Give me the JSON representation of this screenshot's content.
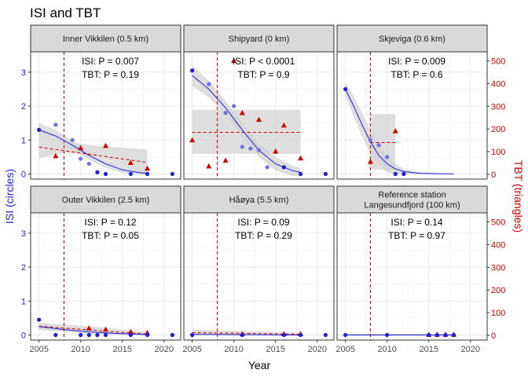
{
  "chart_data": {
    "type": "scatter",
    "title": "ISI and TBT",
    "xlabel": "Year",
    "ylabel_left": "ISI (circles)",
    "ylabel_right": "TBT (triangles)",
    "xlim": [
      2004,
      2022
    ],
    "x_ticks": [
      2005,
      2010,
      2015,
      2020
    ],
    "ylim_isi": [
      -0.15,
      3.6
    ],
    "y_ticks_isi": [
      0,
      1,
      2,
      3
    ],
    "ylim_tbt": [
      -21,
      540
    ],
    "y_ticks_tbt": [
      0,
      100,
      200,
      300,
      400,
      500
    ],
    "reference_line_year": 2008,
    "colors": {
      "isi": "#1f1fd6",
      "isi_faded": "#7070e0",
      "tbt": "#cc0000",
      "ribbon": "#d3d3d3",
      "strip": "#d9d9d9",
      "grid": "#ebebeb",
      "left_axis_text": "#1f1fd6",
      "right_axis_text": "#cc0000"
    },
    "panels": [
      {
        "title": "Inner Vikkilen (0.5 km)",
        "isi_p": "ISI: P =  0.007",
        "tbt_p": "TBT: P =  0.19",
        "isi": [
          [
            2005,
            1.3
          ],
          [
            2007,
            1.45
          ],
          [
            2009,
            1.0
          ],
          [
            2010,
            0.45
          ],
          [
            2011,
            0.3
          ],
          [
            2012,
            0.05
          ],
          [
            2013,
            0.0
          ],
          [
            2016,
            0.0
          ],
          [
            2018,
            0.0
          ],
          [
            2021,
            0.0
          ]
        ],
        "tbt": [
          [
            2007,
            80
          ],
          [
            2010,
            115
          ],
          [
            2013,
            125
          ],
          [
            2016,
            50
          ],
          [
            2018,
            25
          ]
        ],
        "isi_fit": [
          [
            2005,
            1.3
          ],
          [
            2007,
            1.12
          ],
          [
            2009,
            0.85
          ],
          [
            2011,
            0.55
          ],
          [
            2013,
            0.3
          ],
          [
            2015,
            0.12
          ],
          [
            2017,
            0.04
          ],
          [
            2018,
            0.02
          ]
        ],
        "isi_band": [
          [
            2005,
            1.1,
            1.5
          ],
          [
            2007,
            0.95,
            1.3
          ],
          [
            2009,
            0.72,
            0.98
          ],
          [
            2011,
            0.42,
            0.68
          ],
          [
            2013,
            0.18,
            0.42
          ],
          [
            2015,
            0.03,
            0.25
          ],
          [
            2017,
            -0.02,
            0.12
          ],
          [
            2018,
            -0.03,
            0.08
          ]
        ],
        "tbt_fit": [
          [
            2005,
            120
          ],
          [
            2018,
            52
          ]
        ],
        "tbt_band": [
          [
            2005,
            70,
            165
          ],
          [
            2008,
            95,
            145
          ],
          [
            2012,
            80,
            125
          ],
          [
            2018,
            0,
            110
          ]
        ]
      },
      {
        "title": "Shipyard (0 km)",
        "isi_p": "ISI: P < 0.0001",
        "tbt_p": "TBT: P =  0.9",
        "isi": [
          [
            2005,
            3.05
          ],
          [
            2007,
            2.65
          ],
          [
            2009,
            1.8
          ],
          [
            2010,
            2.0
          ],
          [
            2011,
            0.8
          ],
          [
            2012,
            0.75
          ],
          [
            2013,
            0.7
          ],
          [
            2014,
            0.2
          ],
          [
            2016,
            0.2
          ],
          [
            2018,
            0.0
          ],
          [
            2021,
            0.0
          ]
        ],
        "tbt": [
          [
            2005,
            150
          ],
          [
            2007,
            35
          ],
          [
            2009,
            60
          ],
          [
            2010,
            500
          ],
          [
            2011,
            270
          ],
          [
            2013,
            240
          ],
          [
            2015,
            100
          ],
          [
            2016,
            215
          ],
          [
            2018,
            70
          ]
        ],
        "isi_fit": [
          [
            2005,
            2.9
          ],
          [
            2007,
            2.5
          ],
          [
            2009,
            1.95
          ],
          [
            2011,
            1.3
          ],
          [
            2013,
            0.7
          ],
          [
            2015,
            0.3
          ],
          [
            2017,
            0.1
          ],
          [
            2018,
            0.05
          ]
        ],
        "isi_band": [
          [
            2005,
            2.6,
            3.2
          ],
          [
            2007,
            2.25,
            2.75
          ],
          [
            2009,
            1.75,
            2.15
          ],
          [
            2011,
            1.1,
            1.5
          ],
          [
            2013,
            0.5,
            0.9
          ],
          [
            2015,
            0.1,
            0.5
          ],
          [
            2017,
            -0.05,
            0.25
          ],
          [
            2018,
            -0.08,
            0.18
          ]
        ],
        "tbt_fit": [
          [
            2005,
            185
          ],
          [
            2018,
            185
          ]
        ],
        "tbt_band": [
          [
            2005,
            90,
            285
          ],
          [
            2018,
            90,
            285
          ]
        ]
      },
      {
        "title": "Skjeviga (0.6 km)",
        "isi_p": "ISI: P =  0.009",
        "tbt_p": "TBT: P =  0.6",
        "isi": [
          [
            2005,
            2.5
          ],
          [
            2008,
            1.0
          ],
          [
            2009,
            0.85
          ],
          [
            2010,
            0.5
          ],
          [
            2011,
            0.0
          ],
          [
            2012,
            0.0
          ]
        ],
        "tbt": [
          [
            2008,
            55
          ],
          [
            2011,
            190
          ]
        ],
        "isi_fit": [
          [
            2005,
            2.5
          ],
          [
            2006,
            2.0
          ],
          [
            2007,
            1.45
          ],
          [
            2008,
            0.95
          ],
          [
            2009,
            0.55
          ],
          [
            2010,
            0.3
          ],
          [
            2011,
            0.15
          ],
          [
            2012,
            0.07
          ],
          [
            2014,
            0.02
          ],
          [
            2018,
            0.0
          ]
        ],
        "isi_band": [
          [
            2005,
            2.3,
            2.7
          ],
          [
            2006,
            1.7,
            2.3
          ],
          [
            2007,
            1.1,
            1.8
          ],
          [
            2008,
            0.6,
            1.3
          ],
          [
            2009,
            0.25,
            0.85
          ],
          [
            2010,
            0.05,
            0.55
          ],
          [
            2011,
            0.0,
            0.3
          ],
          [
            2012,
            0.0,
            0.15
          ],
          [
            2014,
            0.0,
            0.05
          ],
          [
            2018,
            0.0,
            0.01
          ]
        ],
        "tbt_fit": [
          [
            2008,
            140
          ],
          [
            2011,
            140
          ]
        ],
        "tbt_band": [
          [
            2008,
            20,
            265
          ],
          [
            2011,
            20,
            265
          ]
        ]
      },
      {
        "title": "Outer Vikkilen (2.5 km)",
        "isi_p": "ISI: P =  0.12",
        "tbt_p": "TBT: P =  0.05",
        "isi": [
          [
            2005,
            0.45
          ],
          [
            2007,
            0.0
          ],
          [
            2010,
            0.0
          ],
          [
            2011,
            0.0
          ],
          [
            2012,
            0.0
          ],
          [
            2013,
            0.0
          ],
          [
            2016,
            0.0
          ],
          [
            2018,
            0.0
          ],
          [
            2021,
            0.0
          ]
        ],
        "tbt": [
          [
            2011,
            30
          ],
          [
            2013,
            25
          ],
          [
            2016,
            15
          ],
          [
            2018,
            10
          ]
        ],
        "isi_fit": [
          [
            2005,
            0.25
          ],
          [
            2008,
            0.16
          ],
          [
            2011,
            0.09
          ],
          [
            2014,
            0.05
          ],
          [
            2018,
            0.02
          ]
        ],
        "isi_band": [
          [
            2005,
            0.15,
            0.35
          ],
          [
            2008,
            0.1,
            0.22
          ],
          [
            2011,
            0.04,
            0.14
          ],
          [
            2014,
            0.0,
            0.1
          ],
          [
            2018,
            -0.03,
            0.07
          ]
        ],
        "tbt_fit": [
          [
            2005,
            40
          ],
          [
            2018,
            5
          ]
        ],
        "tbt_band": [
          [
            2005,
            25,
            55
          ],
          [
            2011,
            15,
            40
          ],
          [
            2018,
            -5,
            15
          ]
        ]
      },
      {
        "title": "Håøya (5.5 km)",
        "isi_p": "ISI: P =  0.09",
        "tbt_p": "TBT: P =  0.29",
        "isi": [
          [
            2005,
            0.0
          ],
          [
            2011,
            0.0
          ],
          [
            2016,
            0.0
          ],
          [
            2018,
            0.0
          ],
          [
            2021,
            0.0
          ]
        ],
        "tbt": [
          [
            2011,
            5
          ],
          [
            2016,
            5
          ],
          [
            2018,
            5
          ]
        ],
        "isi_fit": [
          [
            2005,
            0.02
          ],
          [
            2018,
            0.0
          ]
        ],
        "isi_band": [
          [
            2005,
            -0.01,
            0.05
          ],
          [
            2018,
            -0.02,
            0.02
          ]
        ],
        "tbt_fit": [
          [
            2005,
            12
          ],
          [
            2018,
            5
          ]
        ],
        "tbt_band": [
          [
            2005,
            0,
            25
          ],
          [
            2018,
            0,
            12
          ]
        ]
      },
      {
        "title": "Reference station\nLangesundfjord (100 km)",
        "isi_p": "ISI: P =  0.14",
        "tbt_p": "TBT: P =  0.97",
        "isi": [
          [
            2005,
            0.0
          ],
          [
            2010,
            0.0
          ],
          [
            2015,
            0.0
          ],
          [
            2016,
            0.0
          ],
          [
            2017,
            0.0
          ],
          [
            2018,
            0.0
          ]
        ],
        "tbt": [
          [
            2015,
            2
          ],
          [
            2016,
            2
          ],
          [
            2017,
            2
          ],
          [
            2018,
            2
          ]
        ],
        "isi_fit": [
          [
            2005,
            0.0
          ],
          [
            2018,
            0.0
          ]
        ],
        "isi_band": [
          [
            2005,
            -0.02,
            0.02
          ],
          [
            2018,
            -0.02,
            0.02
          ]
        ],
        "tbt_fit": [
          [
            2005,
            2
          ],
          [
            2018,
            2
          ]
        ],
        "tbt_band": [
          [
            2005,
            0,
            5
          ],
          [
            2018,
            0,
            5
          ]
        ]
      }
    ]
  }
}
